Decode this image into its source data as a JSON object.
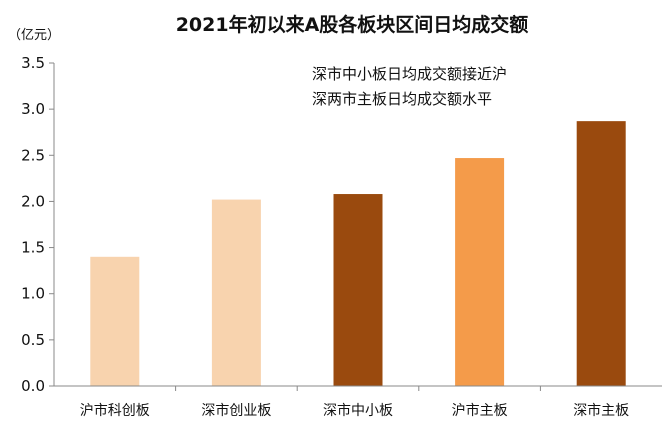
{
  "chart_data": {
    "type": "bar",
    "title": "2021年初以来A股各板块区间日均成交额",
    "unit_label": "（亿元）",
    "categories": [
      "沪市科创板",
      "深市创业板",
      "深市中小板",
      "沪市主板",
      "深市主板"
    ],
    "values": [
      1.4,
      2.02,
      2.08,
      2.47,
      2.87
    ],
    "bar_colors": [
      "#F8D3AE",
      "#F8D3AE",
      "#9A4A0E",
      "#F49B4A",
      "#9A4A0E"
    ],
    "ylim": [
      0,
      3.5
    ],
    "yticks": [
      "0.0",
      "0.5",
      "1.0",
      "1.5",
      "2.0",
      "2.5",
      "3.0",
      "3.5"
    ],
    "ytick_values": [
      0,
      0.5,
      1.0,
      1.5,
      2.0,
      2.5,
      3.0,
      3.5
    ],
    "grid": false,
    "annotations": [
      "深市中小板日均成交额接近沪",
      "深两市主板日均成交额水平"
    ]
  }
}
